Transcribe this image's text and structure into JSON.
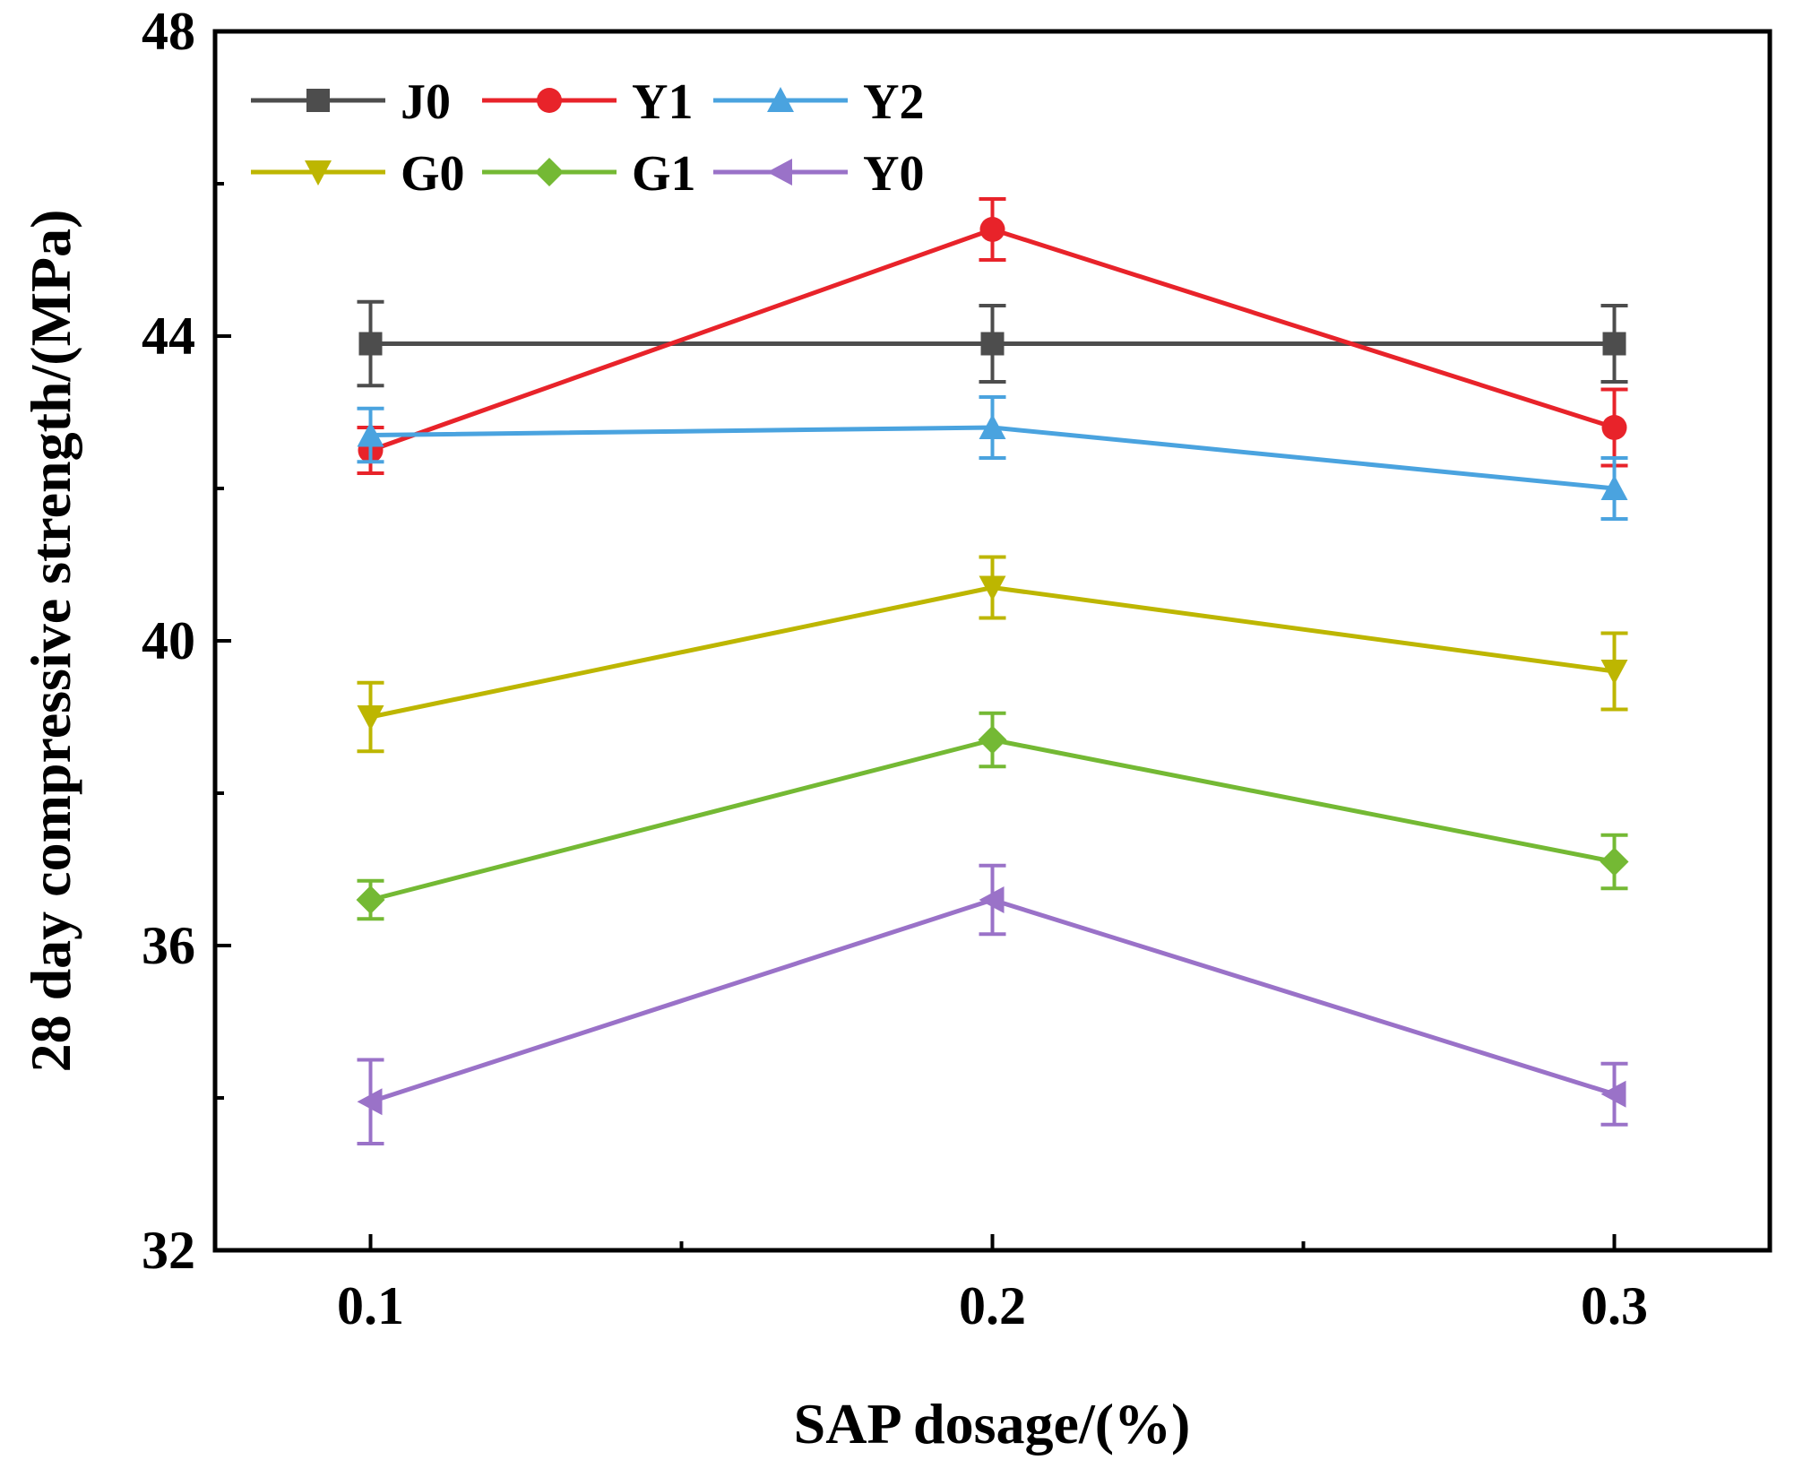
{
  "chart_data": {
    "type": "line",
    "xlabel": "SAP dosage/(%)",
    "ylabel": "28 day compressive strength/(MPa)",
    "x": [
      0.1,
      0.2,
      0.3
    ],
    "x_tick_labels": [
      "0.1",
      "0.2",
      "0.3"
    ],
    "xlim": [
      0.075,
      0.325
    ],
    "ylim": [
      32,
      48
    ],
    "y_ticks": [
      32,
      36,
      40,
      44,
      48
    ],
    "y_tick_labels": [
      "32",
      "36",
      "40",
      "44",
      "48"
    ],
    "grid": false,
    "legend_position": "top-left",
    "legend_columns": 3,
    "series": [
      {
        "name": "J0",
        "color": "#4d4d4d",
        "marker": "square",
        "values": [
          43.9,
          43.9,
          43.9
        ],
        "errors": [
          0.55,
          0.5,
          0.5
        ]
      },
      {
        "name": "Y1",
        "color": "#e8232a",
        "marker": "circle",
        "values": [
          42.5,
          45.4,
          42.8
        ],
        "errors": [
          0.3,
          0.4,
          0.5
        ]
      },
      {
        "name": "Y2",
        "color": "#4aa3df",
        "marker": "triangle-up",
        "values": [
          42.7,
          42.8,
          42.0
        ],
        "errors": [
          0.35,
          0.4,
          0.4
        ]
      },
      {
        "name": "G0",
        "color": "#bdb600",
        "marker": "triangle-down",
        "values": [
          39.0,
          40.7,
          39.6
        ],
        "errors": [
          0.45,
          0.4,
          0.5
        ]
      },
      {
        "name": "G1",
        "color": "#74b934",
        "marker": "diamond",
        "values": [
          36.6,
          38.7,
          37.1
        ],
        "errors": [
          0.25,
          0.35,
          0.35
        ]
      },
      {
        "name": "Y0",
        "color": "#9a72c8",
        "marker": "triangle-left",
        "values": [
          33.95,
          36.6,
          34.05
        ],
        "errors": [
          0.55,
          0.45,
          0.4
        ]
      }
    ]
  }
}
